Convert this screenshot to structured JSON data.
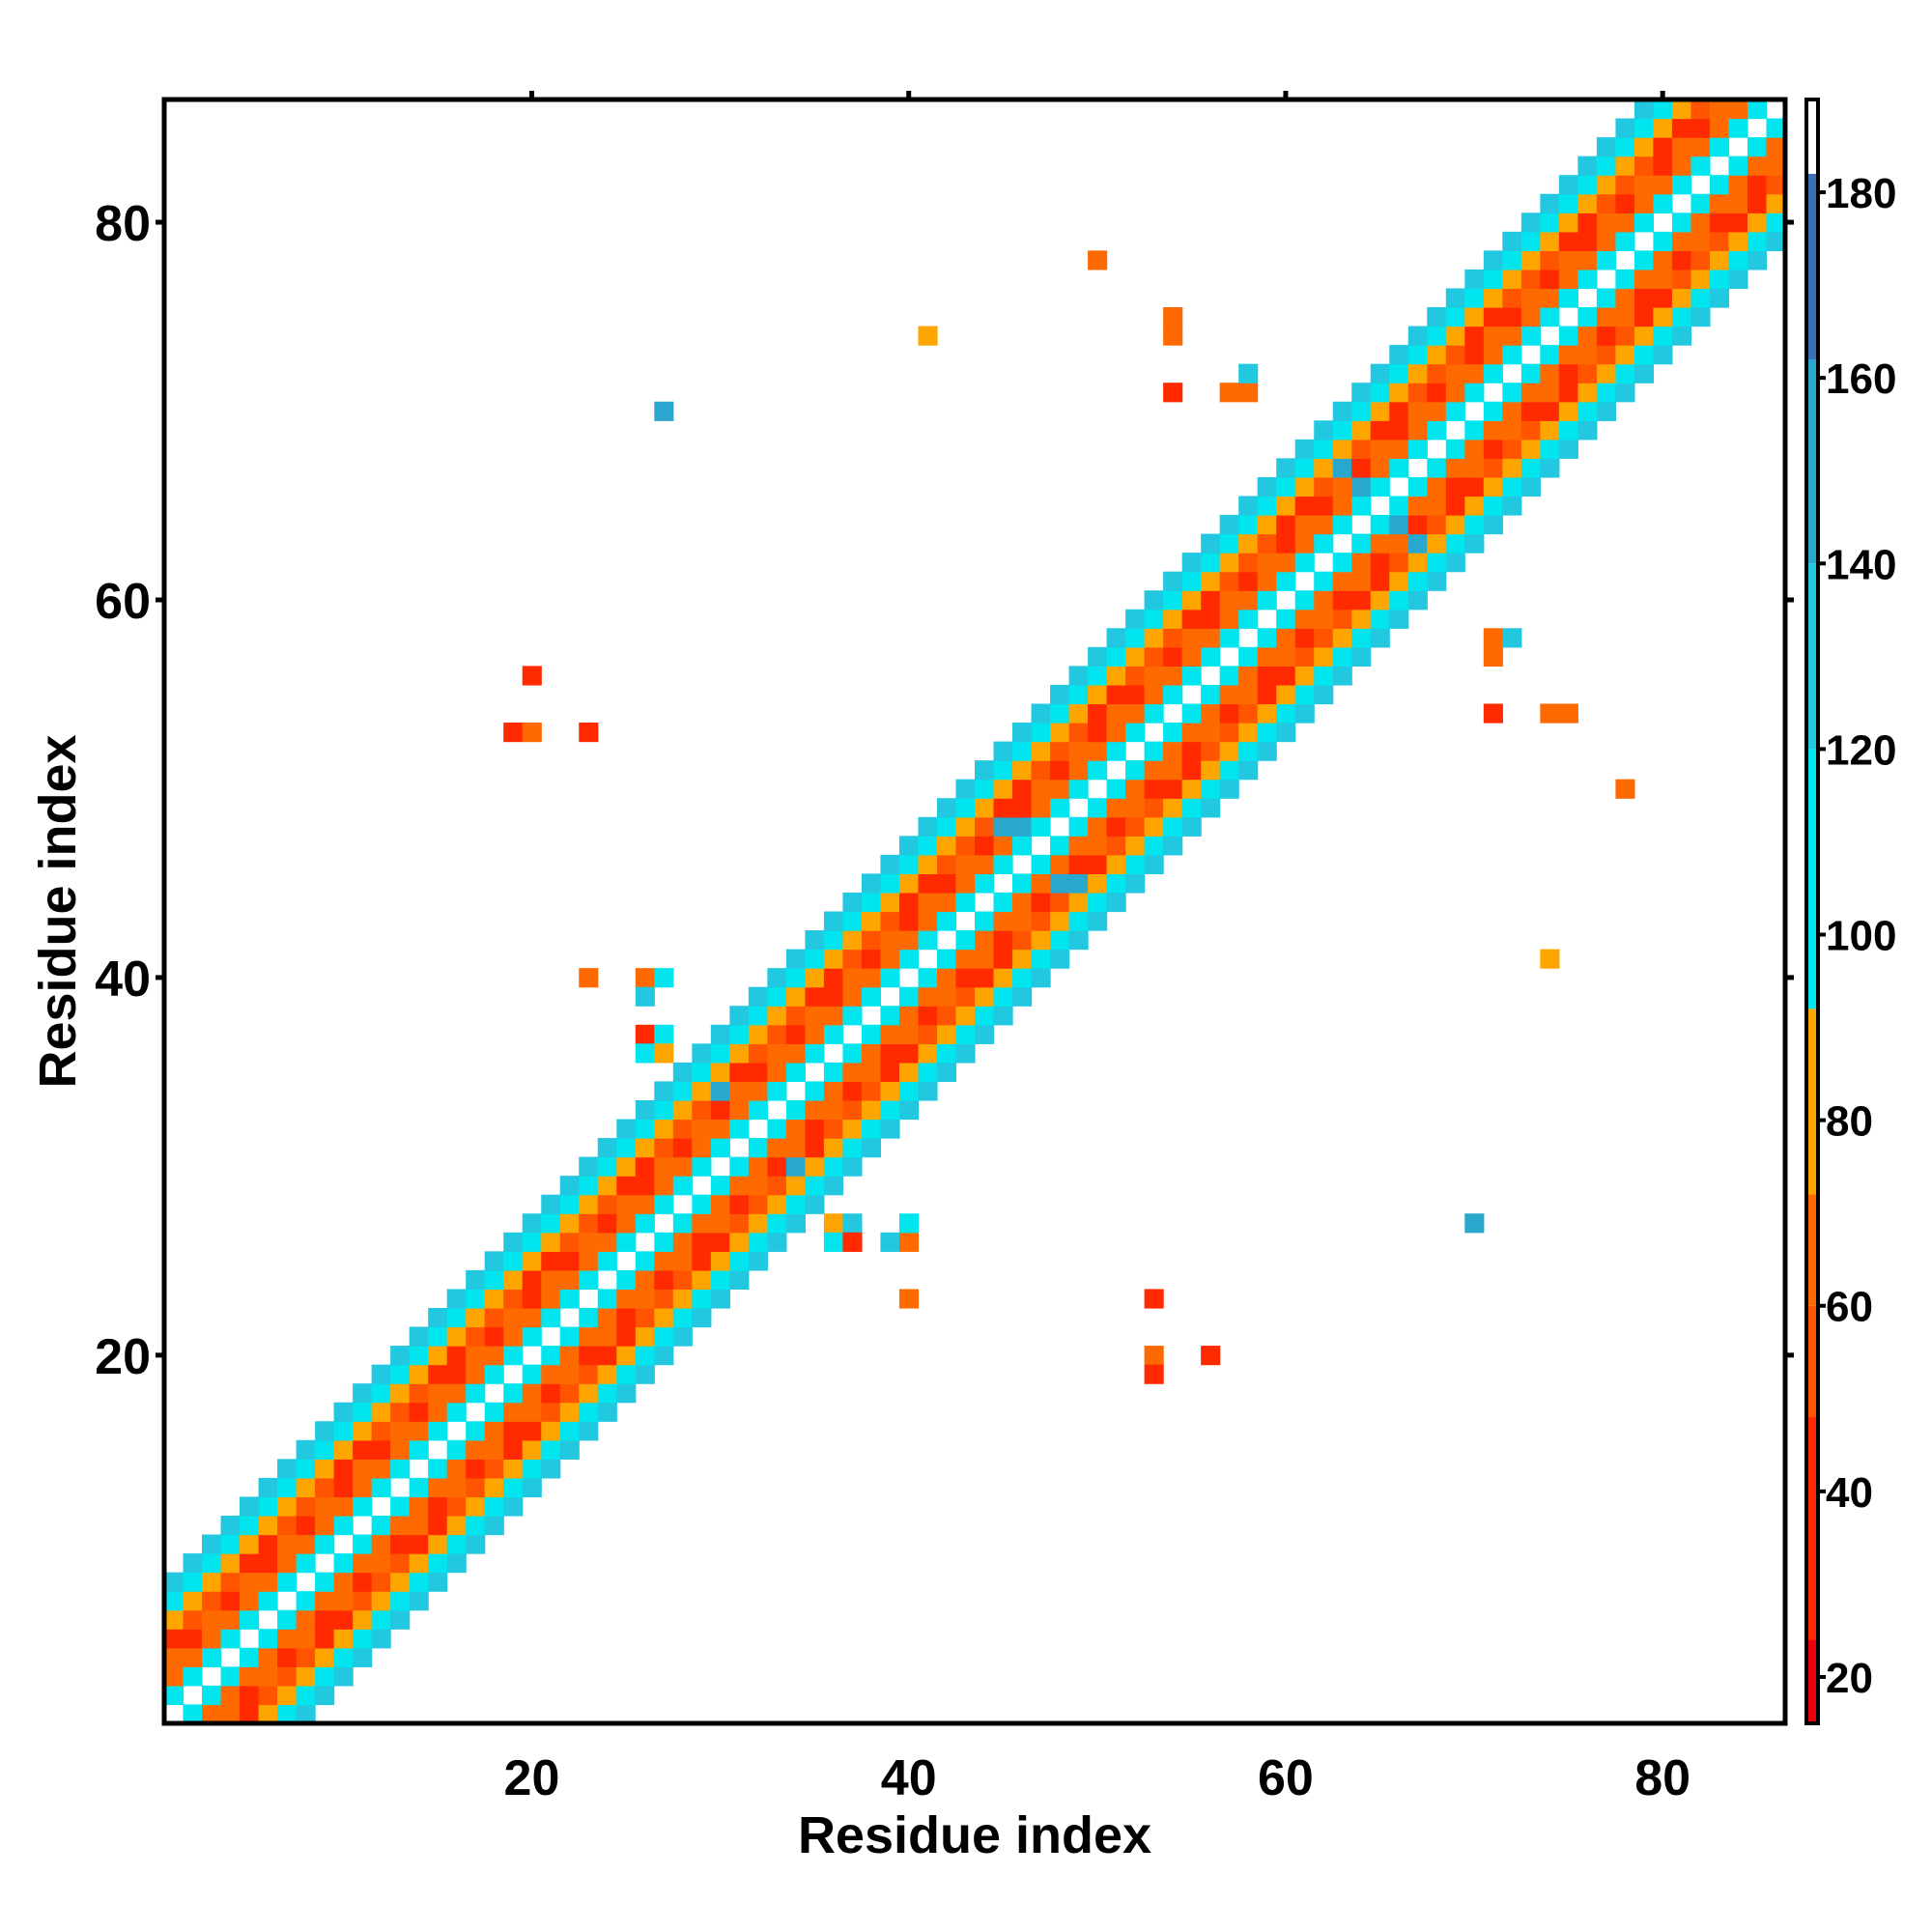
{
  "chart_data": {
    "type": "heatmap",
    "title": "",
    "xlabel": "Residue index",
    "ylabel": "Residue index",
    "xlim": [
      0.5,
      86.5
    ],
    "ylim": [
      0.5,
      86.5
    ],
    "x_ticks": [
      20,
      40,
      60,
      80
    ],
    "y_ticks": [
      20,
      40,
      60,
      80
    ],
    "grid": false,
    "colorbar": {
      "range": [
        15,
        190
      ],
      "ticks": [
        20,
        40,
        60,
        80,
        100,
        120,
        140,
        160,
        180
      ],
      "stops": [
        {
          "from": 15,
          "to": 24,
          "color": "#e8000b"
        },
        {
          "from": 24,
          "to": 48,
          "color": "#ff2a00"
        },
        {
          "from": 48,
          "to": 60,
          "color": "#ff5500"
        },
        {
          "from": 60,
          "to": 72,
          "color": "#ff6a00"
        },
        {
          "from": 72,
          "to": 92,
          "color": "#ffa500"
        },
        {
          "from": 92,
          "to": 120,
          "color": "#00e5ee"
        },
        {
          "from": 120,
          "to": 140,
          "color": "#22c8e0"
        },
        {
          "from": 140,
          "to": 162,
          "color": "#2aa7cc"
        },
        {
          "from": 162,
          "to": 182,
          "color": "#3b6fb6"
        },
        {
          "from": 182,
          "to": 190,
          "color": "#ffffff"
        }
      ]
    },
    "band": {
      "residues": 86,
      "diag_value": 190,
      "half_width": 7,
      "values_by_offset": [
        190,
        108,
        62,
        35,
        55,
        75,
        112,
        130
      ]
    },
    "off_diagonal_cells": [
      {
        "x": 20,
        "y": 56,
        "v": 25
      },
      {
        "x": 19,
        "y": 53,
        "v": 30
      },
      {
        "x": 20,
        "y": 53,
        "v": 62
      },
      {
        "x": 23,
        "y": 53,
        "v": 25
      },
      {
        "x": 27,
        "y": 70,
        "v": 145
      },
      {
        "x": 41,
        "y": 74,
        "v": 80
      },
      {
        "x": 50,
        "y": 78,
        "v": 65
      },
      {
        "x": 54,
        "y": 75,
        "v": 65
      },
      {
        "x": 54,
        "y": 74,
        "v": 65
      },
      {
        "x": 54,
        "y": 71,
        "v": 30
      },
      {
        "x": 57,
        "y": 71,
        "v": 65
      },
      {
        "x": 58,
        "y": 71,
        "v": 65
      },
      {
        "x": 58,
        "y": 72,
        "v": 130
      },
      {
        "x": 71,
        "y": 58,
        "v": 65
      },
      {
        "x": 72,
        "y": 58,
        "v": 130
      },
      {
        "x": 71,
        "y": 57,
        "v": 65
      },
      {
        "x": 71,
        "y": 54,
        "v": 30
      },
      {
        "x": 74,
        "y": 54,
        "v": 65
      },
      {
        "x": 75,
        "y": 54,
        "v": 65
      },
      {
        "x": 78,
        "y": 50,
        "v": 65
      },
      {
        "x": 74,
        "y": 41,
        "v": 80
      },
      {
        "x": 70,
        "y": 27,
        "v": 145
      },
      {
        "x": 23,
        "y": 40,
        "v": 65
      },
      {
        "x": 26,
        "y": 40,
        "v": 65
      },
      {
        "x": 27,
        "y": 40,
        "v": 110
      },
      {
        "x": 26,
        "y": 39,
        "v": 130
      },
      {
        "x": 26,
        "y": 37,
        "v": 30
      },
      {
        "x": 27,
        "y": 37,
        "v": 110
      },
      {
        "x": 26,
        "y": 36,
        "v": 110
      },
      {
        "x": 27,
        "y": 36,
        "v": 80
      },
      {
        "x": 36,
        "y": 27,
        "v": 80
      },
      {
        "x": 37,
        "y": 27,
        "v": 130
      },
      {
        "x": 36,
        "y": 26,
        "v": 110
      },
      {
        "x": 37,
        "y": 26,
        "v": 30
      },
      {
        "x": 39,
        "y": 26,
        "v": 130
      },
      {
        "x": 40,
        "y": 26,
        "v": 65
      },
      {
        "x": 40,
        "y": 27,
        "v": 110
      },
      {
        "x": 40,
        "y": 23,
        "v": 65
      },
      {
        "x": 53,
        "y": 23,
        "v": 25
      },
      {
        "x": 53,
        "y": 20,
        "v": 65
      },
      {
        "x": 53,
        "y": 19,
        "v": 25
      },
      {
        "x": 56,
        "y": 20,
        "v": 25
      },
      {
        "x": 63,
        "y": 67,
        "v": 145
      },
      {
        "x": 64,
        "y": 66,
        "v": 140
      },
      {
        "x": 67,
        "y": 63,
        "v": 145
      },
      {
        "x": 66,
        "y": 64,
        "v": 140
      },
      {
        "x": 45,
        "y": 48,
        "v": 140
      },
      {
        "x": 46,
        "y": 48,
        "v": 140
      },
      {
        "x": 48,
        "y": 45,
        "v": 140
      },
      {
        "x": 49,
        "y": 45,
        "v": 140
      },
      {
        "x": 30,
        "y": 34,
        "v": 140
      },
      {
        "x": 34,
        "y": 30,
        "v": 140
      }
    ]
  }
}
